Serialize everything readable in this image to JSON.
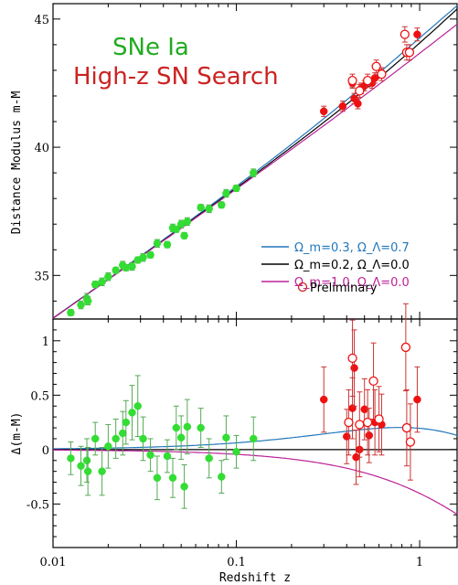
{
  "colors": {
    "sne_low": "#33dd33",
    "sne_high": "#ee1111",
    "text_green": "#22aa22",
    "text_red": "#cc2222",
    "model_lambda": "#2277bb",
    "model_open": "#000000",
    "model_flat": "#bb2299"
  },
  "chart_data": [
    {
      "type": "scatter",
      "title": "",
      "xscale": "log",
      "xlim": [
        0.01,
        1.6
      ],
      "ylim": [
        33.3,
        45.6
      ],
      "ylabel": "Distance Modulus m-M",
      "xlabel": "",
      "yticks": [
        35,
        40,
        45
      ],
      "annotations": [
        "SNe Ia",
        "High-z SN Search"
      ],
      "legend": {
        "placement": "right",
        "entries": [
          {
            "key": "lambda",
            "label": "Ω_m=0.3, Ω_Λ=0.7"
          },
          {
            "key": "open",
            "label": "Ω_m=0.2, Ω_Λ=0.0"
          },
          {
            "key": "flat",
            "label": "Ω_m=1.0, Ω_Λ=0.0"
          }
        ],
        "preliminary_label": "Preliminary"
      },
      "series": [
        {
          "key": "lowz",
          "points": [
            [
              0.0125,
              33.55,
              0.12
            ],
            [
              0.0142,
              33.85,
              0.15
            ],
            [
              0.0153,
              34.1,
              0.2
            ],
            [
              0.0155,
              34.0,
              0.15
            ],
            [
              0.017,
              34.65,
              0.12
            ],
            [
              0.0185,
              34.75,
              0.15
            ],
            [
              0.02,
              34.95,
              0.15
            ],
            [
              0.022,
              35.2,
              0.12
            ],
            [
              0.024,
              35.4,
              0.15
            ],
            [
              0.025,
              35.3,
              0.12
            ],
            [
              0.027,
              35.35,
              0.15
            ],
            [
              0.029,
              35.6,
              0.12
            ],
            [
              0.031,
              35.7,
              0.15
            ],
            [
              0.034,
              35.8,
              0.12
            ],
            [
              0.037,
              36.25,
              0.15
            ],
            [
              0.042,
              36.2,
              0.12
            ],
            [
              0.045,
              36.85,
              0.15
            ],
            [
              0.047,
              36.8,
              0.12
            ],
            [
              0.05,
              37.0,
              0.15
            ],
            [
              0.052,
              36.55,
              0.12
            ],
            [
              0.054,
              37.1,
              0.15
            ],
            [
              0.064,
              37.65,
              0.12
            ],
            [
              0.071,
              37.6,
              0.15
            ],
            [
              0.083,
              37.75,
              0.12
            ],
            [
              0.088,
              38.2,
              0.15
            ],
            [
              0.1,
              38.4,
              0.12
            ],
            [
              0.124,
              39.0,
              0.15
            ]
          ]
        },
        {
          "key": "highz",
          "points": [
            [
              0.3,
              41.4,
              0.2
            ],
            [
              0.38,
              41.6,
              0.2
            ],
            [
              0.43,
              42.5,
              0.2
            ],
            [
              0.44,
              41.9,
              0.2
            ],
            [
              0.46,
              41.7,
              0.2
            ],
            [
              0.48,
              42.3,
              0.2
            ],
            [
              0.5,
              42.4,
              0.2
            ],
            [
              0.55,
              42.5,
              0.2
            ],
            [
              0.57,
              42.7,
              0.2
            ],
            [
              0.62,
              42.9,
              0.2
            ],
            [
              0.97,
              44.4,
              0.25
            ]
          ]
        },
        {
          "key": "prelim",
          "points": [
            [
              0.43,
              42.6,
              0.25
            ],
            [
              0.47,
              42.2,
              0.25
            ],
            [
              0.52,
              42.6,
              0.25
            ],
            [
              0.58,
              43.15,
              0.25
            ],
            [
              0.62,
              42.85,
              0.25
            ],
            [
              0.83,
              44.4,
              0.3
            ],
            [
              0.85,
              43.7,
              0.3
            ],
            [
              0.88,
              43.7,
              0.3
            ]
          ]
        }
      ]
    },
    {
      "type": "scatter",
      "title": "",
      "xscale": "log",
      "xlim": [
        0.01,
        1.6
      ],
      "ylim": [
        -0.9,
        1.2
      ],
      "ylabel": "Δ(m-M)",
      "xlabel": "Redshift z",
      "xticks": [
        "0.01",
        "0.1",
        "1"
      ],
      "yticks": [
        "-0.5",
        "0",
        "0.5",
        "1"
      ],
      "series": [
        {
          "key": "lowz",
          "points": [
            [
              0.0125,
              -0.08,
              0.15
            ],
            [
              0.0142,
              -0.15,
              0.18
            ],
            [
              0.0153,
              -0.1,
              0.2
            ],
            [
              0.0155,
              -0.2,
              0.22
            ],
            [
              0.017,
              0.1,
              0.15
            ],
            [
              0.0185,
              -0.2,
              0.22
            ],
            [
              0.02,
              0.03,
              0.2
            ],
            [
              0.022,
              0.1,
              0.18
            ],
            [
              0.024,
              0.15,
              0.2
            ],
            [
              0.025,
              0.25,
              0.2
            ],
            [
              0.027,
              0.34,
              0.25
            ],
            [
              0.029,
              0.4,
              0.28
            ],
            [
              0.031,
              0.1,
              0.2
            ],
            [
              0.034,
              -0.05,
              0.15
            ],
            [
              0.037,
              -0.26,
              0.2
            ],
            [
              0.042,
              -0.06,
              0.15
            ],
            [
              0.045,
              -0.26,
              0.18
            ],
            [
              0.047,
              0.2,
              0.2
            ],
            [
              0.05,
              0.11,
              0.2
            ],
            [
              0.052,
              -0.34,
              0.2
            ],
            [
              0.054,
              0.21,
              0.25
            ],
            [
              0.064,
              0.2,
              0.18
            ],
            [
              0.071,
              -0.08,
              0.18
            ],
            [
              0.083,
              -0.25,
              0.15
            ],
            [
              0.088,
              0.11,
              0.2
            ],
            [
              0.1,
              -0.02,
              0.15
            ],
            [
              0.124,
              0.1,
              0.2
            ]
          ]
        },
        {
          "key": "highz",
          "points": [
            [
              0.3,
              0.46,
              0.3
            ],
            [
              0.4,
              0.12,
              0.25
            ],
            [
              0.43,
              0.38,
              0.28
            ],
            [
              0.44,
              0.75,
              0.35
            ],
            [
              0.45,
              -0.07,
              0.25
            ],
            [
              0.47,
              0.0,
              0.25
            ],
            [
              0.5,
              0.37,
              0.28
            ],
            [
              0.53,
              0.13,
              0.25
            ],
            [
              0.57,
              0.25,
              0.3
            ],
            [
              0.62,
              0.23,
              0.28
            ],
            [
              0.97,
              0.46,
              0.3
            ]
          ]
        },
        {
          "key": "prelim",
          "points": [
            [
              0.41,
              0.25,
              0.3
            ],
            [
              0.43,
              0.84,
              0.35
            ],
            [
              0.47,
              0.23,
              0.3
            ],
            [
              0.52,
              0.25,
              0.3
            ],
            [
              0.56,
              0.63,
              0.35
            ],
            [
              0.6,
              0.28,
              0.3
            ],
            [
              0.84,
              0.94,
              0.4
            ],
            [
              0.85,
              0.2,
              0.35
            ],
            [
              0.89,
              0.07,
              0.35
            ]
          ]
        }
      ]
    }
  ]
}
